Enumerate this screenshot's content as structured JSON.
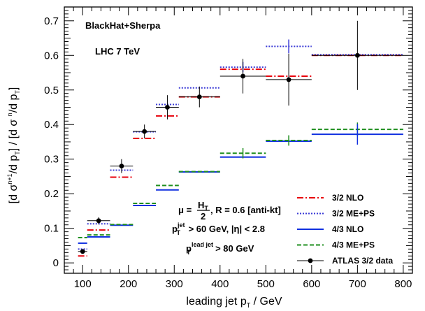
{
  "chart_data": {
    "type": "scatter",
    "xlim": [
      60,
      820
    ],
    "ylim": [
      -0.03,
      0.74
    ],
    "x_ticks": [
      100,
      200,
      300,
      400,
      500,
      600,
      700,
      800
    ],
    "y_ticks": [
      0,
      0.1,
      0.2,
      0.3,
      0.4,
      0.5,
      0.6,
      0.7
    ],
    "x_tick_labels": [
      "100",
      "200",
      "300",
      "400",
      "500",
      "600",
      "700",
      "800"
    ],
    "y_tick_labels": [
      "0",
      "0.1",
      "0.2",
      "0.3",
      "0.4",
      "0.5",
      "0.6",
      "0.7"
    ],
    "xlabel": {
      "pre": "leading jet p",
      "sub": "T",
      "post": " / GeV"
    },
    "ylabel": "[d σ^{n+1}/d p_T] / [d σ^n/d p_T]",
    "annotations": {
      "generator": "BlackHat+Sherpa",
      "energy": "LHC 7 TeV",
      "scale": {
        "mu": "μ =",
        "num": "H",
        "num_sub": "T",
        "den": "2",
        "rest": ",  R = 0.6 [anti-kt]"
      },
      "jet_cut": {
        "p": "p",
        "sup": "jet",
        "sub": "T",
        "rest": " > 60 GeV, |η| < 2.8"
      },
      "lead_cut": {
        "p": "p",
        "sup": "lead jet",
        "sub": "T",
        "rest": " > 80 GeV"
      }
    },
    "bins": [
      [
        90,
        110
      ],
      [
        110,
        160
      ],
      [
        160,
        210
      ],
      [
        210,
        260
      ],
      [
        260,
        310
      ],
      [
        310,
        400
      ],
      [
        400,
        500
      ],
      [
        500,
        600
      ],
      [
        600,
        800
      ]
    ],
    "series": [
      {
        "name": "3/2 NLO",
        "color": "#e8000b",
        "dash": "9 3 2 3",
        "values": [
          0.02,
          0.095,
          0.248,
          0.36,
          0.425,
          0.48,
          0.56,
          0.54,
          0.6
        ]
      },
      {
        "name": "3/2 ME+PS",
        "color": "#3b3bd6",
        "dash": "2 2",
        "values": [
          0.04,
          0.113,
          0.268,
          0.379,
          0.458,
          0.506,
          0.566,
          0.626,
          0.602
        ]
      },
      {
        "name": "4/3 NLO",
        "color": "#1030e0",
        "dash": "",
        "values": [
          0.057,
          0.075,
          0.109,
          0.166,
          0.211,
          0.263,
          0.306,
          0.352,
          0.372
        ]
      },
      {
        "name": "4/3 ME+PS",
        "color": "#1f8f1f",
        "dash": "6 3",
        "values": [
          0.073,
          0.081,
          0.111,
          0.172,
          0.224,
          0.264,
          0.317,
          0.354,
          0.386
        ]
      }
    ],
    "model_errors": [
      {
        "series": 1,
        "bin": 6,
        "err": 0.015
      },
      {
        "series": 1,
        "bin": 7,
        "err": 0.02
      },
      {
        "series": 3,
        "bin": 6,
        "err": 0.015
      },
      {
        "series": 3,
        "bin": 7,
        "err": 0.015
      },
      {
        "series": 3,
        "bin": 8,
        "err": 0.02
      },
      {
        "series": 2,
        "bin": 8,
        "err": 0.03
      }
    ],
    "data": {
      "name": "ATLAS 3/2 data",
      "color": "#000000",
      "points": [
        {
          "x": 100,
          "y": 0.033,
          "xerr": [
            90,
            110
          ],
          "yerr": 0.005
        },
        {
          "x": 135,
          "y": 0.122,
          "xerr": [
            110,
            160
          ],
          "yerr": 0.01
        },
        {
          "x": 185,
          "y": 0.28,
          "xerr": [
            160,
            210
          ],
          "yerr": 0.02
        },
        {
          "x": 235,
          "y": 0.38,
          "xerr": [
            210,
            260
          ],
          "yerr": 0.02
        },
        {
          "x": 285,
          "y": 0.45,
          "xerr": [
            260,
            310
          ],
          "yerr": 0.035
        },
        {
          "x": 355,
          "y": 0.48,
          "xerr": [
            310,
            400
          ],
          "yerr": 0.03
        },
        {
          "x": 450,
          "y": 0.54,
          "xerr": [
            400,
            500
          ],
          "yerr": 0.05
        },
        {
          "x": 550,
          "y": 0.53,
          "xerr": [
            500,
            600
          ],
          "yerr": 0.075
        },
        {
          "x": 700,
          "y": 0.6,
          "xerr": [
            600,
            800
          ],
          "yerr": 0.1
        }
      ]
    },
    "legend_position": "bottom-right"
  }
}
